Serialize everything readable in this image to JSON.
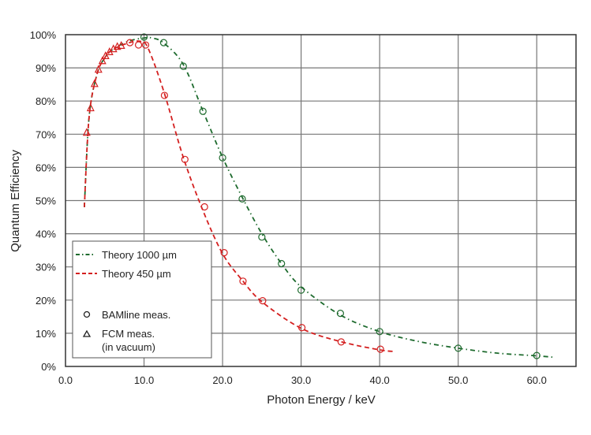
{
  "chart_data": {
    "type": "scatter",
    "title": "",
    "xlabel": "Photon Energy / keV",
    "ylabel": "Quantum Efficiency",
    "xlim": [
      0,
      65
    ],
    "ylim": [
      0,
      100
    ],
    "x_ticks": [
      "0.0",
      "10.0",
      "20.0",
      "30.0",
      "40.0",
      "50.0",
      "60.0"
    ],
    "y_ticks": [
      "0%",
      "10%",
      "20%",
      "30%",
      "40%",
      "50%",
      "60%",
      "70%",
      "80%",
      "90%",
      "100%"
    ],
    "grid": true,
    "legend_position": "bottom-left",
    "series": [
      {
        "name": "Theory 1000 µm",
        "kind": "line",
        "style": "dash-dot",
        "color": "#1e6b2e",
        "x": [
          2.4,
          3,
          4,
          5,
          6,
          8,
          10,
          11,
          12.5,
          15,
          17.5,
          20,
          22.5,
          25,
          27.5,
          30,
          35,
          40,
          45,
          50,
          55,
          60,
          62
        ],
        "y": [
          48,
          75,
          88,
          93,
          95.5,
          98,
          99,
          99,
          97.5,
          91,
          77,
          63,
          51,
          40,
          31,
          24,
          15.5,
          10.5,
          7.5,
          5.5,
          4,
          3.2,
          2.8
        ]
      },
      {
        "name": "Theory 450 µm",
        "kind": "line",
        "style": "dashed",
        "color": "#d42020",
        "x": [
          2.4,
          3,
          4,
          5,
          6,
          8,
          9.5,
          10.5,
          12.5,
          15,
          17.5,
          20,
          22.5,
          25,
          30,
          35,
          40,
          42
        ],
        "y": [
          48,
          75,
          88,
          93,
          95.5,
          97.5,
          98,
          96,
          83,
          63,
          47,
          34,
          26,
          19.5,
          11.5,
          7.5,
          5,
          4.5
        ]
      },
      {
        "name": "BAMline meas.",
        "kind": "points",
        "marker": "circle",
        "color": "#1e6b2e",
        "x": [
          10,
          12.5,
          15,
          17.5,
          20,
          22.5,
          25,
          27.5,
          30,
          35,
          40,
          50,
          60
        ],
        "y": [
          99.3,
          97.6,
          90.5,
          76.9,
          62.9,
          50.5,
          39,
          31,
          23,
          16,
          10.5,
          5.5,
          3.3
        ]
      },
      {
        "name": "BAMline meas.",
        "kind": "points",
        "marker": "circle",
        "color": "#d42020",
        "x": [
          8.2,
          9.3,
          10.2,
          12.6,
          15.2,
          17.7,
          20.2,
          22.6,
          25.1,
          30.1,
          35.1,
          40.1
        ],
        "y": [
          97.6,
          96.9,
          96.9,
          81.7,
          62.4,
          48.1,
          34.3,
          25.7,
          19.8,
          11.7,
          7.4,
          5.2
        ]
      },
      {
        "name": "FCM meas. (in vacuum)",
        "kind": "points",
        "marker": "triangle",
        "color": "#d42020",
        "x": [
          2.7,
          3.2,
          3.7,
          4.2,
          4.7,
          5.1,
          5.6,
          6.1,
          6.6,
          7.1
        ],
        "y": [
          70.5,
          77.9,
          85.2,
          89.5,
          92.1,
          93.6,
          94.8,
          95.7,
          96.4,
          96.7
        ]
      }
    ],
    "legend": {
      "theory_1000": "Theory 1000 µm",
      "theory_450": "Theory 450 µm",
      "bamline": "BAMline meas.",
      "fcm_line1": "FCM meas.",
      "fcm_line2": "(in vacuum)"
    }
  }
}
